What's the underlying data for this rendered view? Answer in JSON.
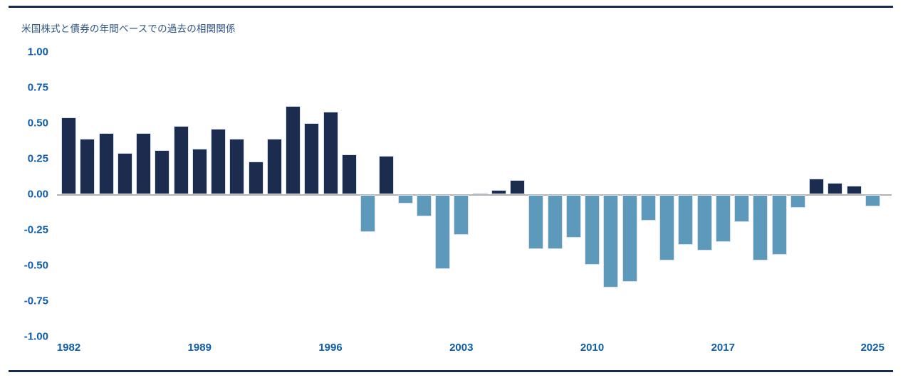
{
  "chart_data": {
    "type": "bar",
    "title": "米国株式と債券の年間ベースでの過去の相関関係",
    "x": [
      1982,
      1983,
      1984,
      1985,
      1986,
      1987,
      1988,
      1989,
      1990,
      1991,
      1992,
      1993,
      1994,
      1995,
      1996,
      1997,
      1998,
      1999,
      2000,
      2001,
      2002,
      2003,
      2004,
      2005,
      2006,
      2007,
      2008,
      2009,
      2010,
      2011,
      2012,
      2013,
      2014,
      2015,
      2016,
      2017,
      2018,
      2019,
      2020,
      2021,
      2022,
      2023,
      2024,
      2025
    ],
    "values": [
      0.54,
      0.39,
      0.43,
      0.29,
      0.43,
      0.31,
      0.48,
      0.32,
      0.46,
      0.39,
      0.23,
      0.39,
      0.62,
      0.5,
      0.58,
      0.28,
      -0.26,
      0.27,
      -0.06,
      -0.15,
      -0.52,
      -0.28,
      0.01,
      0.03,
      0.1,
      -0.38,
      -0.38,
      -0.3,
      -0.49,
      -0.65,
      -0.61,
      -0.18,
      -0.46,
      -0.35,
      -0.39,
      -0.33,
      -0.19,
      -0.46,
      -0.42,
      -0.09,
      0.11,
      0.08,
      0.06,
      -0.08
    ],
    "xlabel": "",
    "ylabel": "",
    "ylim": [
      -1.0,
      1.0
    ],
    "grid": false,
    "legend": "none",
    "y_tick_labels": [
      "1.00",
      "0.75",
      "0.50",
      "0.25",
      "0.00",
      "-0.25",
      "-0.50",
      "-0.75",
      "-1.00"
    ],
    "y_tick_values": [
      1.0,
      0.75,
      0.5,
      0.25,
      0.0,
      -0.25,
      -0.5,
      -0.75,
      -1.0
    ],
    "x_tick_years": [
      1982,
      1989,
      1996,
      2003,
      2010,
      2017,
      2025
    ],
    "colors": {
      "positive_bar": "#1c2c4e",
      "negative_bar": "#5d99ba",
      "bar_outline": "#d9e2ec",
      "axis_label_text": "#0f5cab",
      "title_text": "#2e5480",
      "zero_axis_line": "#b3b3b3",
      "border_rule": "#1b2b4d"
    }
  }
}
